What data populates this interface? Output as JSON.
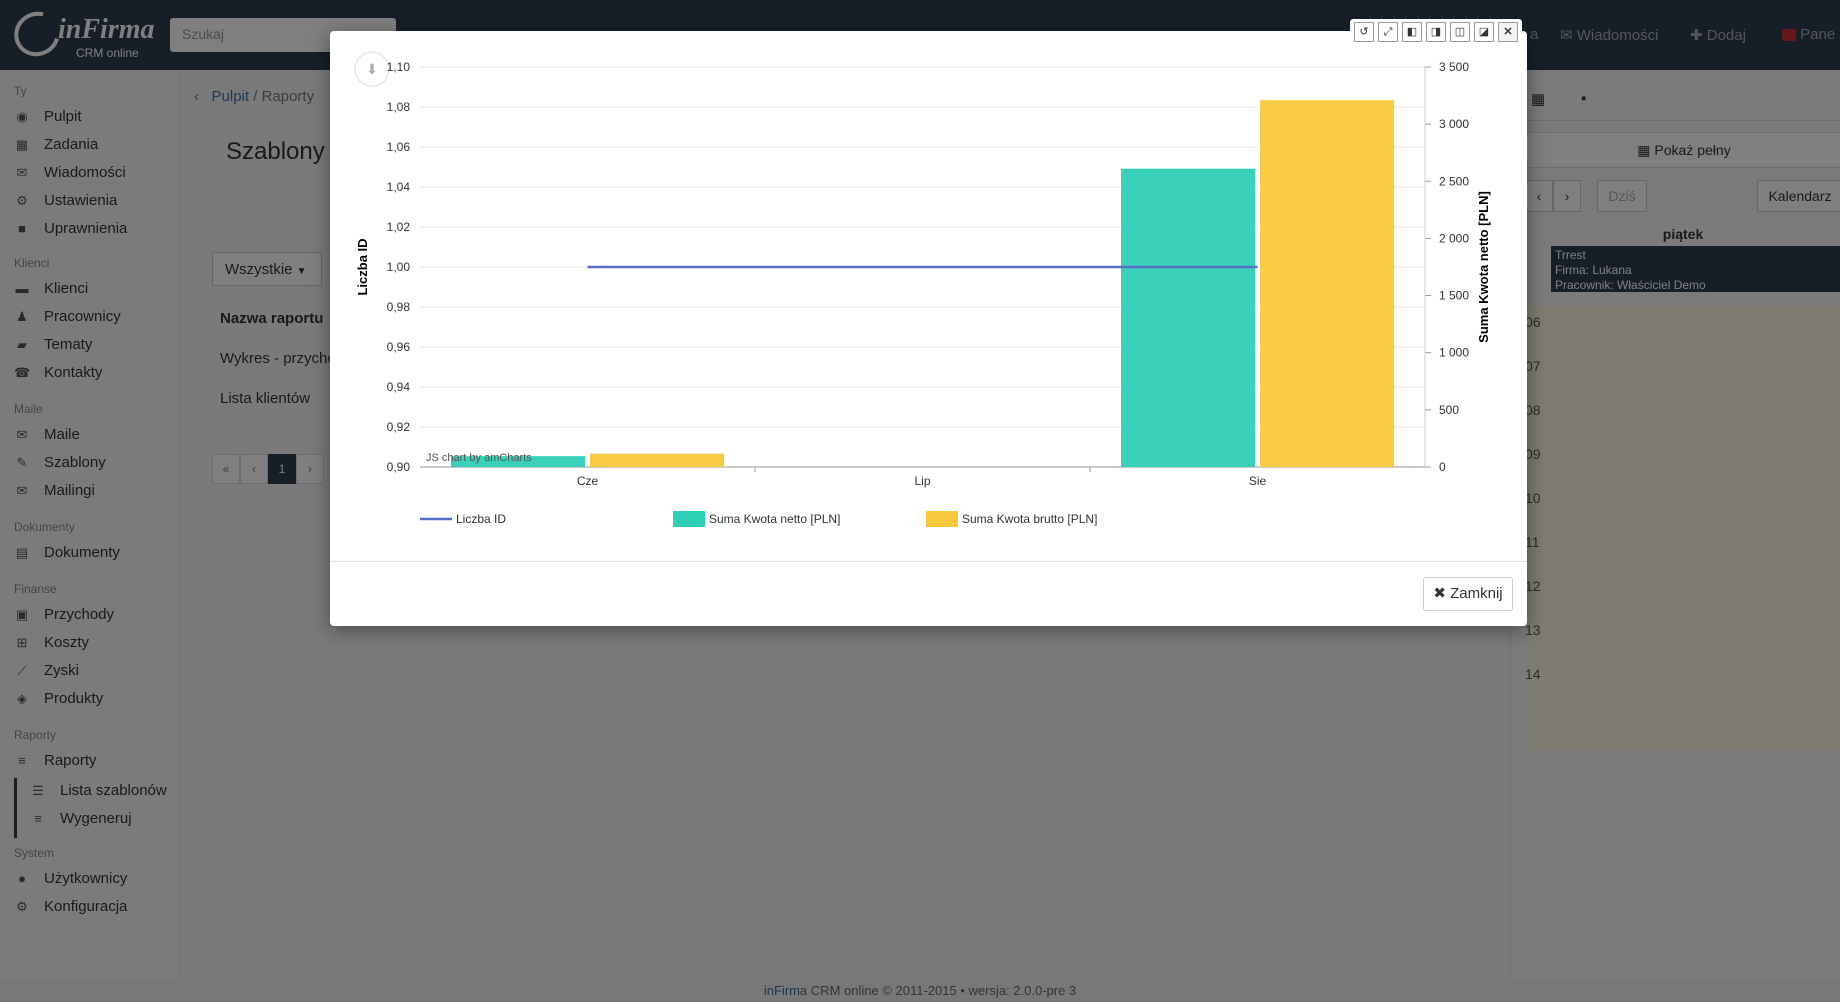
{
  "app": {
    "brand": "inFirma",
    "subtitle": "CRM online"
  },
  "search": {
    "placeholder": "Szukaj"
  },
  "topnav": {
    "item_partial": "a",
    "messages": "Wiadomości",
    "add": "Dodaj",
    "panel": "Pane"
  },
  "sidebar": {
    "sections": [
      "Ty",
      "Klienci",
      "Maile",
      "Dokumenty",
      "Finanse",
      "Raporty",
      "System"
    ],
    "items": [
      {
        "label": "Pulpit",
        "icon": "dashboard-icon"
      },
      {
        "label": "Zadania",
        "icon": "calendar-icon"
      },
      {
        "label": "Wiadomości",
        "icon": "chat-icon"
      },
      {
        "label": "Ustawienia",
        "icon": "gear-icon"
      },
      {
        "label": "Uprawnienia",
        "icon": "lock-icon"
      },
      {
        "label": "Klienci",
        "icon": "briefcase-icon"
      },
      {
        "label": "Pracownicy",
        "icon": "person-icon"
      },
      {
        "label": "Tematy",
        "icon": "folder-icon"
      },
      {
        "label": "Kontakty",
        "icon": "phone-icon"
      },
      {
        "label": "Maile",
        "icon": "envelope-icon"
      },
      {
        "label": "Szablony",
        "icon": "wrench-icon"
      },
      {
        "label": "Mailingi",
        "icon": "envelope-open-icon"
      },
      {
        "label": "Dokumenty",
        "icon": "file-icon"
      },
      {
        "label": "Przychody",
        "icon": "money-icon"
      },
      {
        "label": "Koszty",
        "icon": "cart-icon"
      },
      {
        "label": "Zyski",
        "icon": "line-chart-icon"
      },
      {
        "label": "Produkty",
        "icon": "cube-icon"
      },
      {
        "label": "Raporty",
        "icon": "database-icon"
      },
      {
        "label": "Lista szablonów",
        "icon": "list-icon"
      },
      {
        "label": "Wygeneruj",
        "icon": "database-icon"
      },
      {
        "label": "Użytkownicy",
        "icon": "user-icon"
      },
      {
        "label": "Konfiguracja",
        "icon": "cogs-icon"
      }
    ]
  },
  "breadcrumb": {
    "home": "Pulpit",
    "sep": "/",
    "current": "Raporty"
  },
  "page": {
    "title": "Szablony",
    "filter": "Wszystkie",
    "table_header": "Nazwa raportu",
    "rows": [
      "Wykres - przycho",
      "Lista klientów"
    ],
    "pager": [
      "«",
      "‹",
      "1",
      "›"
    ]
  },
  "calendar": {
    "show_full": "Pokaż pełny",
    "today": "Dziś",
    "view": "Kalendarz",
    "day": "piątek",
    "event": {
      "title": "Trrest",
      "company": "Firma: Lukana",
      "employee": "Pracownik: Właściciel Demo"
    },
    "hours": [
      "06",
      "07",
      "08",
      "09",
      "10",
      "11",
      "12",
      "13",
      "14"
    ]
  },
  "footer": {
    "brand": "inFirma",
    "text": "CRM online © 2011-2015 • wersja: 2.0.0-pre 3"
  },
  "modal": {
    "close_label": "Zamknij",
    "controls": [
      "↺",
      "⤢",
      "◧",
      "◨",
      "◫",
      "◪",
      "✕"
    ],
    "watermark": "JS chart by amCharts"
  },
  "chart_data": {
    "type": "bar",
    "categories": [
      "Cze",
      "Lip",
      "Sie"
    ],
    "series": [
      {
        "name": "Liczba ID",
        "type": "line",
        "axis": "left",
        "color": "#5470c6",
        "values": [
          1.0,
          1.0,
          1.0
        ]
      },
      {
        "name": "Suma Kwota netto [PLN]",
        "type": "bar",
        "axis": "right",
        "color": "#2ecfb5",
        "values": [
          95,
          0,
          2610
        ]
      },
      {
        "name": "Suma Kwota brutto [PLN]",
        "type": "bar",
        "axis": "right",
        "color": "#f8c93a",
        "values": [
          117,
          0,
          3210
        ]
      }
    ],
    "y_left": {
      "label": "Liczba ID",
      "range": [
        0.9,
        1.1
      ],
      "ticks": [
        "0,90",
        "0,92",
        "0,94",
        "0,96",
        "0,98",
        "1,00",
        "1,02",
        "1,04",
        "1,06",
        "1,08",
        "1,10"
      ]
    },
    "y_right": {
      "label": "Suma Kwota netto [PLN]",
      "range": [
        0,
        3500
      ],
      "ticks": [
        "0",
        "500",
        "1 000",
        "1 500",
        "2 000",
        "2 500",
        "3 000",
        "3 500"
      ]
    },
    "legend_position": "bottom",
    "grid": true
  }
}
